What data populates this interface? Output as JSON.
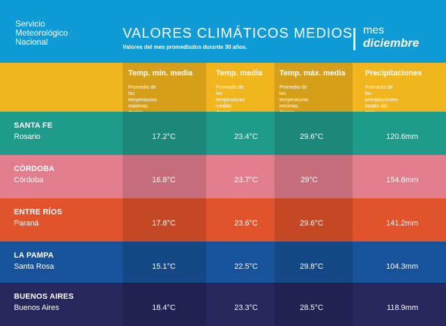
{
  "header": {
    "org_lines": [
      "Servicio",
      "Meteorológico",
      "Nacional"
    ],
    "title": "VALORES CLIMÁTICOS MEDIOS",
    "subtitle": "Valores del mes promediados durante 30 años.",
    "month_label": "mes",
    "month_value": "diciembre"
  },
  "columns": [
    {
      "title": "Temp. mín. media",
      "desc": [
        "Promedio de las",
        "temperaturas",
        "máximas diarias"
      ]
    },
    {
      "title": "Temp. media",
      "desc": [
        "Promedio de las",
        "temperaturas",
        "medias diarias"
      ]
    },
    {
      "title": "Temp. máx. media",
      "desc": [
        "Promedio de las",
        "temperaturas",
        "mínimas diarias"
      ]
    },
    {
      "title": "Precipitaciones",
      "desc": [
        "Promedio de las",
        "precipitaciones",
        "totales del mes"
      ]
    }
  ],
  "rows": [
    {
      "province": "SANTA FE",
      "city": "Rosario",
      "min": "17.2°C",
      "mean": "23.4°C",
      "max": "29.6°C",
      "precip": "120.6mm",
      "color": "#1f9b8c"
    },
    {
      "province": "CÓRDOBA",
      "city": "Córdoba",
      "min": "16.8°C",
      "mean": "23.7°C",
      "max": "29°C",
      "precip": "154.6mm",
      "color": "#e27d8e"
    },
    {
      "province": "ENTRE RÍOS",
      "city": "Paraná",
      "min": "17.8°C",
      "mean": "23.6°C",
      "max": "29.6°C",
      "precip": "141.2mm",
      "color": "#e1532b"
    },
    {
      "province": "LA PAMPA",
      "city": "Santa Rosa",
      "min": "15.1°C",
      "mean": "22.5°C",
      "max": "29.8°C",
      "precip": "104.3mm",
      "color": "#18529a"
    },
    {
      "province": "BUENOS AIRES",
      "city": "Buenos Aires",
      "min": "18.4°C",
      "mean": "23.3°C",
      "max": "28.5°C",
      "precip": "118.9mm",
      "color": "#27275e"
    }
  ],
  "colors": {
    "header_bg": "#0e9bd6",
    "column_header_bg": "#f1b51e"
  }
}
